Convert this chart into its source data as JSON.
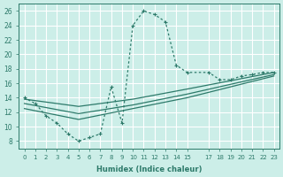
{
  "bg_color": "#cceee8",
  "grid_color": "#ffffff",
  "line_color": "#2d7a6a",
  "xlabel": "Humidex (Indice chaleur)",
  "xlim": [
    -0.5,
    23.5
  ],
  "ylim": [
    7,
    27
  ],
  "xticks": [
    0,
    1,
    2,
    3,
    4,
    5,
    6,
    7,
    8,
    9,
    10,
    11,
    12,
    13,
    14,
    15,
    17,
    18,
    19,
    20,
    21,
    22,
    23
  ],
  "yticks": [
    8,
    10,
    12,
    14,
    16,
    18,
    20,
    22,
    24,
    26
  ],
  "curve_main_x": [
    0,
    1,
    2,
    3,
    4,
    5,
    6,
    7,
    8,
    9,
    10,
    11,
    12,
    13,
    14,
    15,
    17,
    18,
    19,
    20,
    21,
    22,
    23
  ],
  "curve_main_y": [
    14.0,
    13.2,
    11.5,
    10.5,
    9.0,
    8.0,
    8.5,
    9.0,
    15.5,
    10.5,
    24.0,
    26.0,
    25.5,
    24.5,
    18.5,
    17.5,
    17.5,
    16.5,
    16.5,
    17.0,
    17.2,
    17.5,
    17.5
  ],
  "curve_lin1_x": [
    0,
    5,
    10,
    15,
    23
  ],
  "curve_lin1_y": [
    13.8,
    12.8,
    13.8,
    15.2,
    17.5
  ],
  "curve_lin2_x": [
    0,
    5,
    10,
    15,
    23
  ],
  "curve_lin2_y": [
    13.2,
    11.8,
    13.0,
    14.5,
    17.2
  ],
  "curve_lin3_x": [
    0,
    5,
    10,
    15,
    23
  ],
  "curve_lin3_y": [
    12.5,
    11.0,
    12.5,
    14.0,
    17.0
  ]
}
